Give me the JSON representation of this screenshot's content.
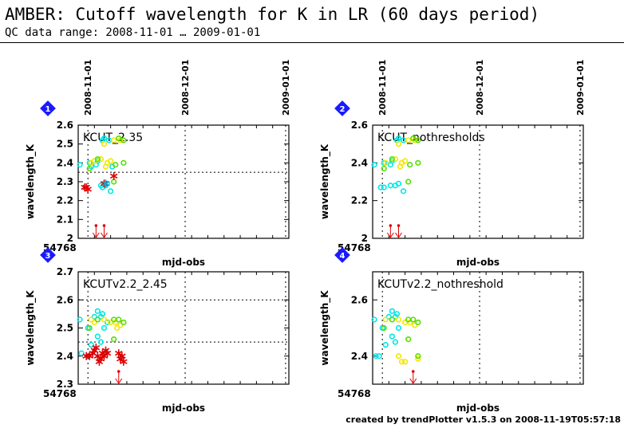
{
  "header": {
    "title": "AMBER: Cutoff wavelength for K in LR (60 days period)",
    "subtitle": "QC data range: 2008-11-01 … 2009-01-01"
  },
  "footer": "created by trendPlotter v1.5.3 on 2008-11-19T05:57:18",
  "chart_data": [
    {
      "type": "scatter",
      "panel_number": "1",
      "label": "KCUT_2.35",
      "xlabel": "mjd-obs",
      "ylabel": "wavelength_K",
      "x_start_label": "54768",
      "xlim": [
        54768,
        54833
      ],
      "ylim": [
        2.0,
        2.6
      ],
      "yticks": [
        "2",
        "2.1",
        "2.2",
        "2.3",
        "2.4",
        "2.5",
        "2.6"
      ],
      "top_ticks": [
        {
          "label": "2008-11-01",
          "x": 54771
        },
        {
          "label": "2008-12-01",
          "x": 54801
        },
        {
          "label": "2009-01-01",
          "x": 54832
        }
      ],
      "thresholds": [
        2.35,
        2.6
      ],
      "series": [
        {
          "color": "#00e5e5",
          "style": "circle",
          "points": [
            [
              54768.5,
              2.39
            ],
            [
              54771.5,
              2.4
            ],
            [
              54772,
              2.38
            ],
            [
              54773.5,
              2.39
            ],
            [
              54774,
              2.41
            ],
            [
              54775,
              2.28
            ],
            [
              54775.5,
              2.27
            ],
            [
              54776.5,
              2.28
            ],
            [
              54777,
              2.29
            ],
            [
              54778,
              2.25
            ],
            [
              54778.5,
              2.38
            ],
            [
              54775.5,
              2.52
            ],
            [
              54776,
              2.53
            ],
            [
              54777.5,
              2.52
            ]
          ]
        },
        {
          "color": "#f2e600",
          "style": "circle",
          "points": [
            [
              54772,
              2.4
            ],
            [
              54773,
              2.41
            ],
            [
              54775,
              2.42
            ],
            [
              54776.5,
              2.38
            ],
            [
              54777,
              2.4
            ],
            [
              54778,
              2.41
            ],
            [
              54776,
              2.5
            ],
            [
              54779,
              2.52
            ],
            [
              54781,
              2.52
            ]
          ]
        },
        {
          "color": "#55dd00",
          "style": "circle",
          "points": [
            [
              54771.5,
              2.37
            ],
            [
              54774,
              2.42
            ],
            [
              54779,
              2.3
            ],
            [
              54779.5,
              2.39
            ],
            [
              54782,
              2.4
            ],
            [
              54780.5,
              2.53
            ],
            [
              54782,
              2.52
            ]
          ]
        },
        {
          "color": "#dd0000",
          "style": "star",
          "points": [
            [
              54770,
              2.27
            ],
            [
              54770.5,
              2.27
            ],
            [
              54771,
              2.26
            ],
            [
              54776,
              2.29
            ],
            [
              54779,
              2.33
            ]
          ]
        },
        {
          "color": "#00aacc",
          "style": "star",
          "points": [
            [
              54776.5,
              2.29
            ]
          ]
        }
      ],
      "out_of_range_low": [
        54773.5,
        54776
      ]
    },
    {
      "type": "scatter",
      "panel_number": "2",
      "label": "KCUT_nothresholds",
      "xlabel": "mjd-obs",
      "ylabel": "wavelength_K",
      "x_start_label": "54768",
      "xlim": [
        54768,
        54833
      ],
      "ylim": [
        2.0,
        2.6
      ],
      "yticks": [
        "2",
        "2.2",
        "2.4",
        "2.6"
      ],
      "top_ticks": [
        {
          "label": "2008-11-01",
          "x": 54771
        },
        {
          "label": "2008-12-01",
          "x": 54801
        },
        {
          "label": "2009-01-01",
          "x": 54832
        }
      ],
      "thresholds": [],
      "series": [
        {
          "color": "#00e5e5",
          "style": "circle",
          "points": [
            [
              54768.5,
              2.39
            ],
            [
              54771.5,
              2.4
            ],
            [
              54773.5,
              2.39
            ],
            [
              54774,
              2.41
            ],
            [
              54770.5,
              2.27
            ],
            [
              54771.5,
              2.27
            ],
            [
              54773.5,
              2.28
            ],
            [
              54775,
              2.28
            ],
            [
              54776,
              2.29
            ],
            [
              54777.5,
              2.25
            ],
            [
              54775.5,
              2.52
            ],
            [
              54776,
              2.53
            ],
            [
              54777.5,
              2.52
            ]
          ]
        },
        {
          "color": "#f2e600",
          "style": "circle",
          "points": [
            [
              54772,
              2.4
            ],
            [
              54775,
              2.42
            ],
            [
              54776.5,
              2.38
            ],
            [
              54777,
              2.4
            ],
            [
              54778,
              2.41
            ],
            [
              54776,
              2.5
            ],
            [
              54779,
              2.52
            ],
            [
              54781,
              2.52
            ]
          ]
        },
        {
          "color": "#55dd00",
          "style": "circle",
          "points": [
            [
              54771.5,
              2.37
            ],
            [
              54774,
              2.42
            ],
            [
              54779,
              2.3
            ],
            [
              54779.5,
              2.39
            ],
            [
              54782,
              2.4
            ],
            [
              54780.5,
              2.53
            ],
            [
              54782,
              2.52
            ]
          ]
        }
      ],
      "out_of_range_low": [
        54773.5,
        54776
      ]
    },
    {
      "type": "scatter",
      "panel_number": "3",
      "label": "KCUTv2.2_2.45",
      "xlabel": "mjd-obs",
      "ylabel": "wavelength_K",
      "x_start_label": "54768",
      "xlim": [
        54768,
        54833
      ],
      "ylim": [
        2.3,
        2.7
      ],
      "yticks": [
        "2.3",
        "2.4",
        "2.5",
        "2.6",
        "2.7"
      ],
      "top_ticks": [],
      "thresholds": [
        2.45,
        2.6
      ],
      "series": [
        {
          "color": "#00e5e5",
          "style": "circle",
          "points": [
            [
              54768.5,
              2.53
            ],
            [
              54771,
              2.5
            ],
            [
              54773,
              2.54
            ],
            [
              54774,
              2.56
            ],
            [
              54775,
              2.54
            ],
            [
              54775.5,
              2.55
            ],
            [
              54772,
              2.44
            ],
            [
              54774,
              2.47
            ],
            [
              54775,
              2.45
            ],
            [
              54769,
              2.41
            ],
            [
              54776,
              2.5
            ],
            [
              54777,
              2.52
            ]
          ]
        },
        {
          "color": "#f2e600",
          "style": "circle",
          "points": [
            [
              54772,
              2.53
            ],
            [
              54773,
              2.52
            ],
            [
              54776,
              2.53
            ],
            [
              54778,
              2.52
            ],
            [
              54779.5,
              2.52
            ],
            [
              54781,
              2.51
            ],
            [
              54780,
              2.5
            ]
          ]
        },
        {
          "color": "#55dd00",
          "style": "circle",
          "points": [
            [
              54771.5,
              2.5
            ],
            [
              54774,
              2.53
            ],
            [
              54779,
              2.53
            ],
            [
              54780.5,
              2.53
            ],
            [
              54782,
              2.52
            ],
            [
              54779,
              2.46
            ]
          ]
        },
        {
          "color": "#dd0000",
          "style": "star",
          "points": [
            [
              54770.5,
              2.4
            ],
            [
              54771.5,
              2.4
            ],
            [
              54772.5,
              2.41
            ],
            [
              54773,
              2.42
            ],
            [
              54773.5,
              2.43
            ],
            [
              54774,
              2.4
            ],
            [
              54774.5,
              2.38
            ],
            [
              54775,
              2.39
            ],
            [
              54775.5,
              2.41
            ],
            [
              54776,
              2.4
            ],
            [
              54776.5,
              2.42
            ],
            [
              54777,
              2.41
            ],
            [
              54780.5,
              2.41
            ],
            [
              54781,
              2.39
            ],
            [
              54781.5,
              2.4
            ],
            [
              54782,
              2.38
            ]
          ]
        }
      ],
      "out_of_range_low": [
        54780.5
      ]
    },
    {
      "type": "scatter",
      "panel_number": "4",
      "label": "KCUTv2.2_nothreshold",
      "xlabel": "mjd-obs",
      "ylabel": "wavelength_K",
      "x_start_label": "54768",
      "xlim": [
        54768,
        54833
      ],
      "ylim": [
        2.3,
        2.7
      ],
      "yticks": [
        "2.4",
        "2.6"
      ],
      "top_ticks": [],
      "thresholds": [],
      "series": [
        {
          "color": "#00e5e5",
          "style": "circle",
          "points": [
            [
              54768.5,
              2.53
            ],
            [
              54771,
              2.5
            ],
            [
              54773,
              2.54
            ],
            [
              54774,
              2.56
            ],
            [
              54775,
              2.54
            ],
            [
              54775.5,
              2.55
            ],
            [
              54772,
              2.44
            ],
            [
              54774,
              2.47
            ],
            [
              54775,
              2.45
            ],
            [
              54769,
              2.4
            ],
            [
              54770,
              2.4
            ],
            [
              54776,
              2.5
            ]
          ]
        },
        {
          "color": "#f2e600",
          "style": "circle",
          "points": [
            [
              54772,
              2.53
            ],
            [
              54776,
              2.53
            ],
            [
              54778,
              2.52
            ],
            [
              54779.5,
              2.52
            ],
            [
              54781,
              2.51
            ],
            [
              54776,
              2.4
            ],
            [
              54777,
              2.38
            ],
            [
              54778,
              2.38
            ],
            [
              54782,
              2.39
            ]
          ]
        },
        {
          "color": "#55dd00",
          "style": "circle",
          "points": [
            [
              54771.5,
              2.5
            ],
            [
              54774,
              2.53
            ],
            [
              54779,
              2.53
            ],
            [
              54780.5,
              2.53
            ],
            [
              54782,
              2.52
            ],
            [
              54779,
              2.46
            ],
            [
              54782,
              2.4
            ]
          ]
        }
      ],
      "out_of_range_low": [
        54780.5
      ]
    }
  ]
}
